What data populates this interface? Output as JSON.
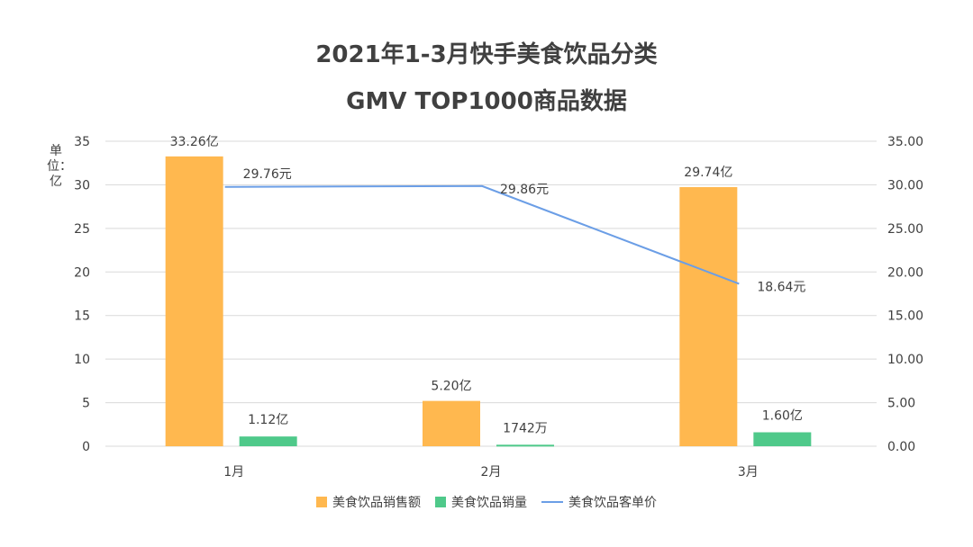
{
  "title_line1": "2021年1-3月快手美食饮品分类",
  "title_line2": "GMV TOP1000商品数据",
  "unit_label": "单位：亿",
  "colors": {
    "sales": "#FFB84F",
    "volume": "#4FC98A",
    "price": "#6B9EE6",
    "grid": "#D9D9D9"
  },
  "chart_data": {
    "type": "bar",
    "categories": [
      "1月",
      "2月",
      "3月"
    ],
    "series": [
      {
        "name": "美食饮品销售额",
        "axis": "left",
        "values": [
          33.26,
          5.2,
          29.74
        ],
        "labels": [
          "33.26亿",
          "5.20亿",
          "29.74亿"
        ]
      },
      {
        "name": "美食饮品销量",
        "axis": "left",
        "values": [
          1.12,
          0.1742,
          1.6
        ],
        "labels": [
          "1.12亿",
          "1742万",
          "1.60亿"
        ]
      },
      {
        "name": "美食饮品客单价",
        "type": "line",
        "axis": "right",
        "values": [
          29.76,
          29.86,
          18.64
        ],
        "labels": [
          "29.76元",
          "29.86元",
          "18.64元"
        ]
      }
    ],
    "left_axis": {
      "ylim": [
        0,
        35
      ],
      "ticks": [
        "0",
        "5",
        "10",
        "15",
        "20",
        "25",
        "30",
        "35"
      ]
    },
    "right_axis": {
      "ylim": [
        0,
        35
      ],
      "ticks": [
        "0.00",
        "5.00",
        "10.00",
        "15.00",
        "20.00",
        "25.00",
        "30.00",
        "35.00"
      ]
    },
    "grid": true,
    "legend_position": "bottom"
  }
}
